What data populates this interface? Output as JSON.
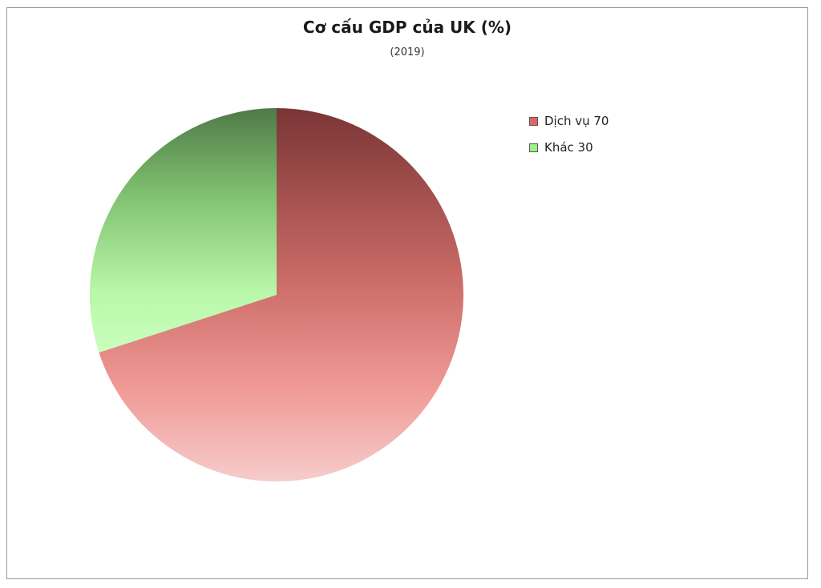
{
  "chart_data": {
    "type": "pie",
    "title": "Cơ cấu GDP của UK (%)",
    "subtitle": "(2019)",
    "legend_position": "right",
    "slices": [
      {
        "label": "Dịch vụ",
        "value": 70,
        "legend_text": "Dịch vụ 70",
        "color": "#e06666"
      },
      {
        "label": "Khác",
        "value": 30,
        "legend_text": "Khác 30",
        "color": "#9ef08a"
      }
    ]
  }
}
